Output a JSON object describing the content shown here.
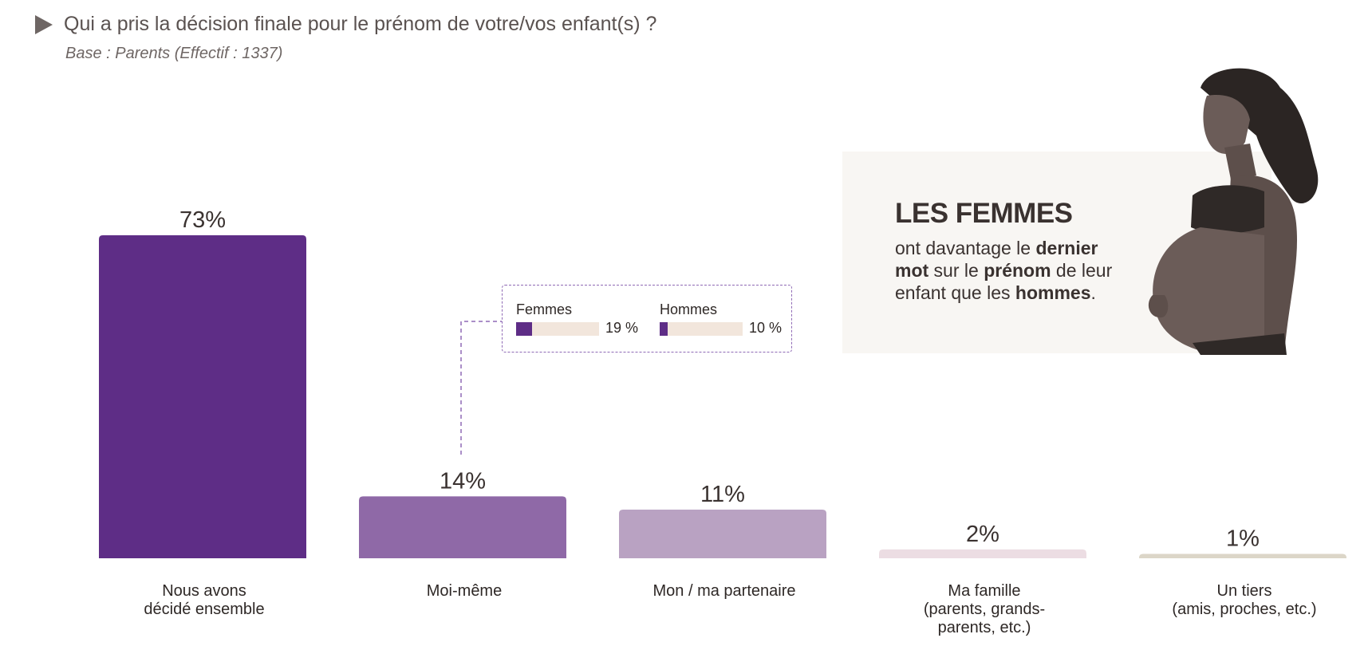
{
  "header": {
    "title": "Qui a pris la décision finale pour le prénom de votre/vos enfant(s) ?",
    "subtitle": "Base : Parents (Effectif : 1337)"
  },
  "chart_data": {
    "type": "bar",
    "categories": [
      [
        "Nous avons",
        "décidé ensemble"
      ],
      [
        "Moi-même"
      ],
      [
        "Mon / ma partenaire"
      ],
      [
        "Ma famille",
        "(parents, grands-",
        "parents, etc.)"
      ],
      [
        "Un tiers",
        "(amis, proches, etc.)"
      ]
    ],
    "values": [
      73,
      14,
      11,
      2,
      1
    ],
    "value_labels": [
      "73%",
      "14%",
      "11%",
      "2%",
      "1%"
    ],
    "colors": [
      "#5e2d86",
      "#8f69a7",
      "#b9a2c2",
      "#ecdde3",
      "#dcd6c8"
    ],
    "ylim": [
      0,
      73
    ],
    "grid": false,
    "legend": "none"
  },
  "callout": {
    "attached_to": "Moi-même",
    "items": [
      {
        "label": "Femmes",
        "value": 19,
        "value_label": "19 %"
      },
      {
        "label": "Hommes",
        "value": 10,
        "value_label": "10 %"
      }
    ],
    "fill_color": "#5e2d86",
    "track_color": "#f2e6dc",
    "border_color": "#8f6ab5"
  },
  "insight": {
    "heading": "LES FEMMES",
    "body_parts": [
      {
        "text": "ont davantage le ",
        "bold": false
      },
      {
        "text": "dernier mot",
        "bold": true
      },
      {
        "text": " sur le ",
        "bold": false
      },
      {
        "text": "prénom",
        "bold": true
      },
      {
        "text": " de leur enfant que les ",
        "bold": false
      },
      {
        "text": "hommes",
        "bold": true
      },
      {
        "text": ".",
        "bold": false
      }
    ]
  },
  "illustration": {
    "icon": "pregnant-woman-photo"
  }
}
